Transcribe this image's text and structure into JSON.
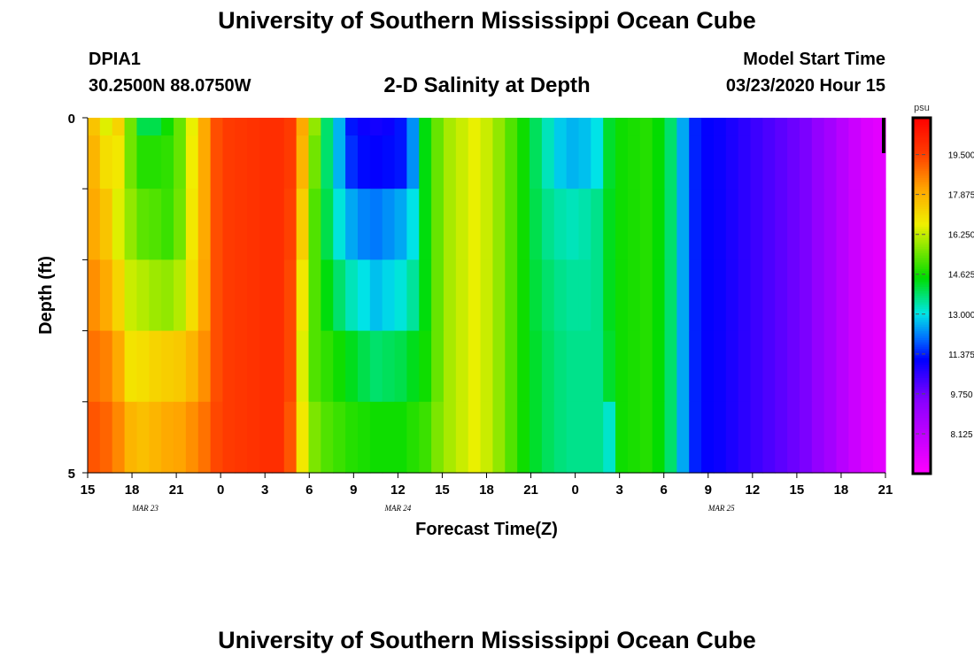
{
  "header": {
    "title": "University of Southern Mississippi Ocean Cube",
    "station_id": "DPIA1",
    "station_coords": "30.2500N 88.0750W",
    "plot_title": "2-D Salinity at Depth",
    "model_start_label": "Model Start Time",
    "model_start_value": "03/23/2020 Hour 15"
  },
  "footer": {
    "title": "University of Southern Mississippi Ocean Cube"
  },
  "chart_data": {
    "type": "heatmap",
    "title": "2-D Salinity at Depth",
    "xlabel": "Forecast Time(Z)",
    "ylabel": "Depth (ft)",
    "x_tick_labels": [
      "15",
      "18",
      "21",
      "0",
      "3",
      "6",
      "9",
      "12",
      "15",
      "18",
      "21",
      "0",
      "3",
      "6",
      "9",
      "12",
      "15",
      "18",
      "21"
    ],
    "date_labels": [
      {
        "text": "MAR 23",
        "at_tick": 1.3
      },
      {
        "text": "MAR 24",
        "at_tick": 7.0
      },
      {
        "text": "MAR 25",
        "at_tick": 14.3
      }
    ],
    "y_tick_labels": [
      "0",
      "5"
    ],
    "ylim": [
      0,
      5
    ],
    "colorbar": {
      "unit": "psu",
      "range": [
        6.5,
        21.0
      ],
      "tick_values": [
        8.125,
        9.75,
        11.375,
        13.0,
        14.625,
        16.25,
        17.875,
        19.5
      ],
      "tick_labels": [
        "8.125",
        "9.750",
        "11.375",
        "13.000",
        "14.625",
        "16.250",
        "17.875",
        "19.500"
      ]
    },
    "depth_layers": [
      {
        "depth": 0.0,
        "values": [
          17.5,
          16.5,
          17.2,
          15.5,
          14.0,
          14.0,
          14.6,
          15.4,
          16.6,
          18.0,
          19.3,
          19.6,
          19.7,
          19.8,
          19.9,
          19.9,
          19.6,
          18.0,
          15.8,
          13.8,
          12.6,
          11.3,
          11.0,
          10.9,
          11.0,
          11.3,
          12.3,
          14.4,
          15.4,
          16.0,
          16.3,
          16.6,
          16.3,
          15.8,
          15.2,
          14.6,
          13.9,
          13.3,
          12.8,
          12.6,
          12.7,
          13.0,
          14.2,
          14.6,
          14.7,
          14.8,
          14.5,
          13.8,
          12.5,
          11.4,
          11.1,
          11.0,
          10.8,
          10.6,
          10.4,
          10.2,
          10.0,
          9.8,
          9.6,
          9.2,
          8.8,
          8.3,
          7.8,
          7.4,
          7.2
        ]
      },
      {
        "depth": 0.5,
        "values": [
          17.8,
          17.0,
          16.8,
          15.5,
          14.8,
          14.8,
          14.9,
          15.4,
          16.7,
          18.0,
          19.3,
          19.6,
          19.7,
          19.8,
          19.9,
          19.9,
          19.6,
          17.8,
          15.5,
          13.8,
          12.6,
          11.5,
          11.2,
          11.1,
          11.2,
          11.3,
          12.3,
          14.4,
          15.4,
          16.0,
          16.3,
          16.6,
          16.3,
          15.8,
          15.2,
          14.6,
          13.9,
          13.3,
          12.8,
          12.6,
          12.7,
          13.0,
          14.2,
          14.6,
          14.7,
          14.8,
          14.5,
          13.8,
          12.5,
          11.4,
          11.1,
          11.0,
          10.8,
          10.6,
          10.4,
          10.2,
          10.0,
          9.8,
          9.6,
          9.2,
          8.8,
          8.3,
          7.8,
          7.4,
          7.2
        ]
      },
      {
        "depth": 1.5,
        "values": [
          18.0,
          17.5,
          16.5,
          15.8,
          15.3,
          15.2,
          15.0,
          15.5,
          16.8,
          18.0,
          19.3,
          19.6,
          19.7,
          19.8,
          19.9,
          19.9,
          19.5,
          17.3,
          15.2,
          14.0,
          13.1,
          12.5,
          12.2,
          12.1,
          12.3,
          12.5,
          13.0,
          14.4,
          15.4,
          16.0,
          16.3,
          16.6,
          16.3,
          15.8,
          15.2,
          14.6,
          14.0,
          13.6,
          13.4,
          13.3,
          13.4,
          13.6,
          14.3,
          14.6,
          14.7,
          14.8,
          14.5,
          13.8,
          12.5,
          11.4,
          11.1,
          11.0,
          10.8,
          10.6,
          10.4,
          10.2,
          10.0,
          9.8,
          9.6,
          9.2,
          8.8,
          8.3,
          7.8,
          7.4,
          7.2
        ]
      },
      {
        "depth": 2.5,
        "values": [
          18.4,
          18.0,
          17.2,
          16.3,
          16.1,
          15.9,
          15.8,
          16.1,
          17.0,
          18.1,
          19.3,
          19.6,
          19.7,
          19.8,
          19.9,
          19.9,
          19.4,
          16.8,
          15.2,
          14.4,
          13.8,
          13.3,
          13.0,
          12.7,
          12.9,
          13.1,
          13.5,
          14.4,
          15.4,
          16.0,
          16.3,
          16.6,
          16.3,
          15.8,
          15.2,
          14.6,
          14.1,
          13.8,
          13.6,
          13.5,
          13.5,
          13.6,
          14.3,
          14.6,
          14.7,
          14.8,
          14.5,
          13.8,
          12.5,
          11.4,
          11.1,
          11.0,
          10.8,
          10.6,
          10.4,
          10.2,
          10.0,
          9.8,
          9.6,
          9.2,
          8.8,
          8.3,
          7.8,
          7.4,
          7.2
        ]
      },
      {
        "depth": 3.5,
        "values": [
          18.8,
          18.6,
          18.0,
          16.9,
          17.0,
          17.2,
          17.3,
          17.4,
          17.8,
          18.4,
          19.3,
          19.6,
          19.7,
          19.8,
          19.9,
          19.9,
          19.4,
          16.5,
          15.2,
          14.9,
          14.6,
          14.3,
          14.0,
          13.8,
          13.9,
          14.0,
          14.3,
          14.6,
          15.4,
          16.0,
          16.3,
          16.6,
          16.3,
          15.8,
          15.2,
          14.6,
          14.2,
          13.9,
          13.7,
          13.6,
          13.6,
          13.6,
          14.2,
          14.6,
          14.7,
          14.8,
          14.5,
          13.8,
          12.5,
          11.4,
          11.1,
          11.0,
          10.8,
          10.6,
          10.4,
          10.2,
          10.0,
          9.8,
          9.6,
          9.2,
          8.8,
          8.3,
          7.8,
          7.4,
          7.2
        ]
      },
      {
        "depth": 4.5,
        "values": [
          19.2,
          19.0,
          18.5,
          17.8,
          17.6,
          17.8,
          18.0,
          18.1,
          18.4,
          18.8,
          19.4,
          19.6,
          19.7,
          19.8,
          19.9,
          19.9,
          19.2,
          16.8,
          15.6,
          15.2,
          15.0,
          14.8,
          14.7,
          14.6,
          14.6,
          14.6,
          14.8,
          15.0,
          15.6,
          16.0,
          16.3,
          16.6,
          16.3,
          15.8,
          15.2,
          14.6,
          14.2,
          13.9,
          13.7,
          13.6,
          13.6,
          13.6,
          13.2,
          14.6,
          14.7,
          14.8,
          14.5,
          13.8,
          12.5,
          11.4,
          11.1,
          11.0,
          10.8,
          10.6,
          10.4,
          10.2,
          10.0,
          9.8,
          9.6,
          9.2,
          8.8,
          8.3,
          7.8,
          7.4,
          7.2
        ]
      }
    ],
    "grid": false
  }
}
